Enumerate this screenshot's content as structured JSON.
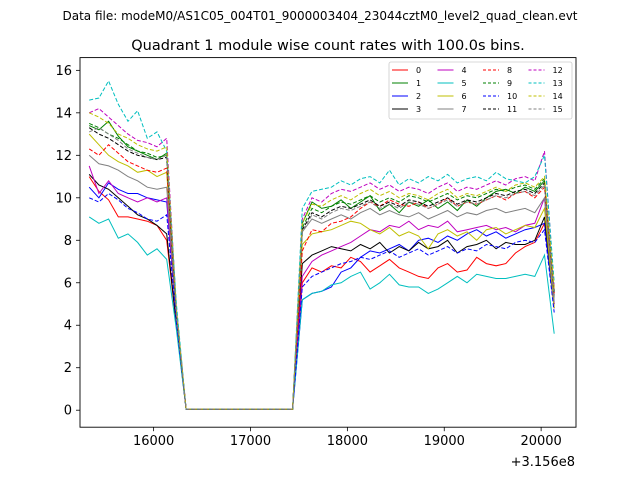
{
  "header": {
    "datafile_label": "Data file: modeM0/AS1C05_004T01_9000003404_23044cztM0_level2_quad_clean.evt"
  },
  "chart_data": {
    "type": "line",
    "title": "Quadrant 1 module wise count rates with 100.0s bins.",
    "xlabel": "",
    "ylabel": "",
    "x_offset_label": "+3.156e8",
    "xlim": [
      15240,
      20360
    ],
    "ylim": [
      -0.8,
      16.6
    ],
    "x_ticks": [
      16000,
      17000,
      18000,
      19000,
      20000
    ],
    "x_tick_labels": [
      "16000",
      "17000",
      "18000",
      "19000",
      "20000"
    ],
    "y_ticks": [
      0,
      2,
      4,
      6,
      8,
      10,
      12,
      14,
      16
    ],
    "y_tick_labels": [
      "0",
      "2",
      "4",
      "6",
      "8",
      "10",
      "12",
      "14",
      "16"
    ],
    "grid": false,
    "legend_position": "top-right",
    "x": [
      15335,
      15435,
      15535,
      15635,
      15735,
      15835,
      15935,
      16035,
      16135,
      16235,
      16335,
      17435,
      17535,
      17635,
      17735,
      17835,
      17935,
      18035,
      18135,
      18235,
      18335,
      18435,
      18535,
      18635,
      18735,
      18835,
      18935,
      19035,
      19135,
      19235,
      19335,
      19435,
      19535,
      19635,
      19735,
      19835,
      19935,
      20035,
      20135
    ],
    "series": [
      {
        "name": "0",
        "color": "#ff0000",
        "dashed": false,
        "values": [
          11.0,
          10.3,
          9.9,
          9.1,
          9.1,
          9.0,
          8.9,
          8.7,
          8.0,
          4.0,
          0.05,
          0.05,
          6.0,
          6.7,
          6.5,
          6.8,
          6.7,
          7.2,
          7.0,
          6.5,
          6.8,
          7.1,
          6.7,
          6.5,
          6.3,
          6.2,
          6.7,
          6.9,
          6.5,
          6.6,
          7.2,
          6.9,
          6.8,
          6.9,
          7.4,
          7.7,
          7.9,
          8.8,
          4.8
        ]
      },
      {
        "name": "1",
        "color": "#008000",
        "dashed": false,
        "values": [
          13.4,
          13.2,
          13.6,
          12.9,
          12.4,
          12.2,
          12.0,
          11.8,
          12.1,
          4.5,
          0.05,
          0.05,
          8.8,
          9.8,
          9.5,
          9.6,
          9.9,
          9.5,
          9.8,
          10.1,
          9.4,
          9.7,
          9.3,
          9.8,
          9.6,
          9.9,
          9.5,
          9.8,
          9.4,
          9.9,
          9.6,
          10.0,
          10.3,
          10.4,
          10.2,
          10.5,
          10.3,
          10.8,
          5.5
        ]
      },
      {
        "name": "2",
        "color": "#0000ff",
        "dashed": false,
        "values": [
          10.5,
          10.0,
          10.7,
          10.4,
          10.2,
          10.2,
          10.0,
          9.9,
          9.8,
          4.3,
          0.05,
          0.05,
          5.2,
          5.5,
          5.6,
          5.8,
          6.5,
          6.7,
          7.2,
          7.5,
          7.4,
          7.6,
          7.8,
          7.5,
          8.0,
          8.1,
          7.9,
          8.2,
          8.0,
          8.3,
          8.5,
          8.2,
          8.4,
          8.1,
          8.3,
          8.5,
          8.6,
          8.8,
          4.8
        ]
      },
      {
        "name": "3",
        "color": "#000000",
        "dashed": false,
        "values": [
          11.1,
          10.6,
          10.4,
          10.0,
          9.6,
          9.2,
          9.0,
          8.7,
          8.3,
          4.0,
          0.05,
          0.05,
          6.9,
          7.3,
          7.5,
          7.7,
          7.6,
          7.5,
          7.8,
          7.6,
          7.9,
          7.4,
          7.7,
          7.5,
          7.9,
          7.6,
          7.7,
          8.0,
          7.4,
          7.7,
          7.8,
          8.0,
          7.6,
          7.9,
          7.8,
          7.8,
          8.0,
          9.1,
          5.0
        ]
      },
      {
        "name": "4",
        "color": "#bf00bf",
        "dashed": false,
        "values": [
          11.5,
          10.2,
          10.8,
          10.2,
          10.0,
          9.8,
          10.0,
          9.8,
          10.0,
          4.2,
          0.05,
          0.05,
          6.3,
          7.0,
          7.3,
          7.5,
          7.7,
          7.9,
          8.2,
          8.5,
          8.4,
          8.7,
          8.6,
          8.9,
          8.5,
          8.7,
          8.6,
          8.9,
          8.4,
          8.5,
          8.6,
          8.7,
          8.5,
          8.6,
          8.4,
          8.7,
          8.8,
          10.0,
          5.0
        ]
      },
      {
        "name": "5",
        "color": "#00bfbf",
        "dashed": false,
        "values": [
          9.1,
          8.8,
          9.0,
          8.1,
          8.3,
          7.9,
          7.3,
          7.6,
          7.1,
          3.8,
          0.05,
          0.05,
          5.2,
          5.5,
          5.6,
          5.9,
          6.0,
          6.3,
          6.5,
          5.7,
          6.0,
          6.4,
          5.9,
          5.8,
          5.8,
          5.5,
          5.7,
          6.0,
          6.3,
          6.0,
          6.4,
          6.3,
          6.2,
          6.2,
          6.3,
          6.4,
          6.3,
          7.3,
          3.6
        ]
      },
      {
        "name": "6",
        "color": "#bfbf00",
        "dashed": false,
        "values": [
          13.0,
          12.5,
          12.0,
          11.7,
          11.5,
          11.2,
          11.3,
          11.0,
          11.2,
          4.6,
          0.05,
          0.05,
          7.8,
          8.3,
          8.4,
          8.5,
          8.7,
          8.9,
          8.8,
          8.5,
          8.3,
          8.6,
          8.2,
          8.4,
          8.2,
          7.6,
          8.3,
          8.5,
          8.2,
          8.4,
          8.0,
          8.5,
          8.6,
          8.3,
          8.5,
          8.7,
          8.6,
          9.5,
          4.8
        ]
      },
      {
        "name": "7",
        "color": "#808080",
        "dashed": false,
        "values": [
          12.0,
          11.6,
          11.5,
          11.3,
          11.0,
          10.8,
          10.5,
          10.4,
          10.5,
          4.4,
          0.05,
          0.05,
          8.4,
          9.0,
          8.8,
          9.0,
          9.2,
          9.0,
          9.3,
          9.5,
          9.2,
          9.4,
          9.2,
          9.1,
          9.3,
          9.0,
          9.2,
          9.4,
          9.1,
          9.3,
          9.2,
          9.4,
          9.5,
          9.3,
          9.4,
          9.5,
          9.3,
          10.0,
          5.1
        ]
      },
      {
        "name": "8",
        "color": "#ff0000",
        "dashed": true,
        "values": [
          12.3,
          12.0,
          12.5,
          12.1,
          11.7,
          11.5,
          11.3,
          11.2,
          11.4,
          4.6,
          0.05,
          0.05,
          7.5,
          8.5,
          8.4,
          8.8,
          8.9,
          9.1,
          9.5,
          9.8,
          9.6,
          9.9,
          9.7,
          9.6,
          9.8,
          9.5,
          9.7,
          10.0,
          9.6,
          9.8,
          9.7,
          9.9,
          10.1,
          9.9,
          10.2,
          10.3,
          10.0,
          10.5,
          5.5
        ]
      },
      {
        "name": "9",
        "color": "#008000",
        "dashed": true,
        "values": [
          13.5,
          13.3,
          13.0,
          12.8,
          12.5,
          12.2,
          12.1,
          11.9,
          12.0,
          4.6,
          0.05,
          0.05,
          8.6,
          9.5,
          9.3,
          9.6,
          9.8,
          9.7,
          9.9,
          10.1,
          9.8,
          10.0,
          9.8,
          10.1,
          10.0,
          9.8,
          10.0,
          10.2,
          9.9,
          10.1,
          10.0,
          10.2,
          10.4,
          10.3,
          10.5,
          10.6,
          10.4,
          10.9,
          5.6
        ]
      },
      {
        "name": "10",
        "color": "#0000ff",
        "dashed": true,
        "values": [
          10.0,
          9.8,
          10.2,
          9.9,
          9.5,
          9.3,
          9.0,
          8.9,
          9.2,
          4.2,
          0.05,
          0.05,
          5.8,
          6.3,
          6.5,
          6.7,
          6.9,
          7.0,
          7.2,
          7.1,
          7.3,
          7.5,
          7.2,
          7.4,
          7.6,
          7.3,
          7.5,
          7.7,
          7.4,
          7.6,
          7.5,
          7.8,
          7.7,
          7.6,
          7.9,
          8.0,
          7.9,
          8.5,
          4.6
        ]
      },
      {
        "name": "11",
        "color": "#000000",
        "dashed": true,
        "values": [
          13.3,
          13.0,
          12.8,
          12.5,
          12.2,
          12.0,
          11.9,
          11.8,
          11.9,
          4.5,
          0.05,
          0.05,
          8.5,
          9.3,
          9.1,
          9.4,
          9.6,
          9.5,
          9.7,
          9.9,
          9.6,
          9.8,
          9.6,
          9.9,
          9.8,
          9.6,
          9.8,
          10.0,
          9.7,
          9.9,
          9.8,
          10.0,
          10.2,
          10.1,
          10.3,
          10.4,
          10.2,
          10.7,
          5.4
        ]
      },
      {
        "name": "12",
        "color": "#bf00bf",
        "dashed": true,
        "values": [
          14.0,
          14.2,
          13.8,
          13.4,
          13.0,
          12.7,
          12.6,
          12.4,
          12.8,
          4.8,
          0.05,
          0.05,
          9.0,
          10.0,
          9.8,
          10.2,
          10.4,
          10.3,
          10.5,
          10.7,
          10.4,
          10.6,
          10.3,
          10.5,
          10.4,
          10.2,
          10.5,
          10.7,
          10.3,
          10.5,
          10.4,
          10.6,
          10.8,
          10.6,
          10.9,
          11.0,
          10.8,
          12.2,
          5.8
        ]
      },
      {
        "name": "13",
        "color": "#00bfbf",
        "dashed": true,
        "values": [
          14.6,
          14.7,
          15.5,
          14.4,
          13.6,
          14.1,
          12.8,
          13.1,
          12.2,
          5.0,
          0.05,
          0.05,
          9.5,
          10.3,
          10.4,
          10.5,
          10.8,
          10.6,
          10.9,
          11.0,
          10.7,
          11.3,
          10.6,
          10.9,
          10.7,
          11.0,
          10.8,
          11.1,
          10.7,
          10.9,
          11.0,
          10.8,
          11.2,
          10.9,
          10.8,
          10.7,
          11.0,
          12.0,
          6.0
        ]
      },
      {
        "name": "14",
        "color": "#bfbf00",
        "dashed": true,
        "values": [
          14.0,
          13.8,
          13.5,
          13.0,
          12.8,
          12.5,
          12.3,
          12.2,
          12.4,
          4.7,
          0.05,
          0.05,
          8.8,
          9.7,
          9.6,
          9.9,
          10.1,
          9.9,
          10.2,
          10.4,
          10.1,
          10.3,
          10.0,
          10.2,
          10.1,
          9.9,
          10.2,
          10.4,
          10.0,
          10.2,
          10.1,
          10.3,
          10.5,
          10.3,
          10.6,
          10.7,
          10.5,
          11.0,
          5.7
        ]
      },
      {
        "name": "15",
        "color": "#808080",
        "dashed": true,
        "values": [
          13.1,
          13.3,
          13.0,
          12.7,
          12.3,
          12.1,
          11.9,
          11.8,
          12.0,
          4.5,
          0.05,
          0.05,
          8.4,
          9.2,
          9.0,
          9.3,
          9.5,
          9.4,
          9.6,
          9.8,
          9.5,
          9.7,
          9.5,
          9.8,
          9.7,
          9.5,
          9.7,
          9.9,
          9.6,
          9.8,
          9.7,
          9.9,
          10.1,
          10.0,
          10.2,
          10.3,
          10.1,
          10.6,
          5.3
        ]
      }
    ]
  }
}
